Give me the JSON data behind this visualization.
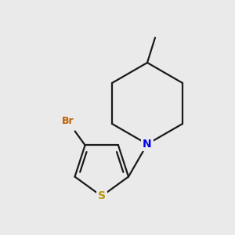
{
  "background_color": "#eaeaea",
  "bond_color": "#1a1a1a",
  "N_color": "#0000ee",
  "S_color": "#b8960c",
  "Br_color": "#c06000",
  "N_label": "N",
  "S_label": "S",
  "Br_label": "Br",
  "figsize": [
    3.0,
    3.0
  ],
  "dpi": 100,
  "xlim": [
    0,
    300
  ],
  "ylim": [
    0,
    300
  ]
}
